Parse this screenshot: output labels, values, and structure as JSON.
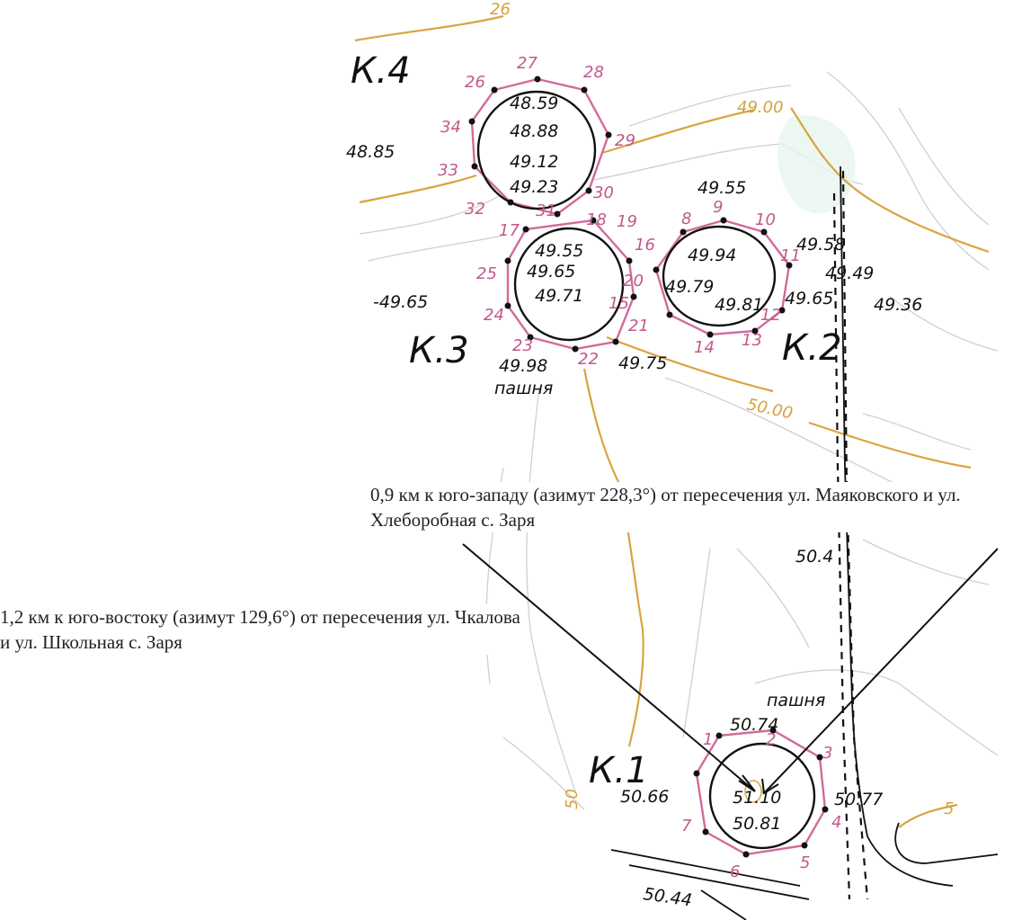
{
  "colors": {
    "contour": "#d9a441",
    "contour_light": "#c8c8c8",
    "boundary": "#d36a9c",
    "ink": "#111111"
  },
  "sites": [
    {
      "name": "К.1",
      "elevations": [
        "51.10",
        "50.81"
      ],
      "vertices": [
        "1",
        "2",
        "3",
        "4",
        "5",
        "6",
        "7"
      ]
    },
    {
      "name": "К.2",
      "elevations": [
        "49.94",
        "49.79",
        "49.81"
      ],
      "vertices": [
        "8",
        "9",
        "10",
        "11",
        "12",
        "13",
        "14",
        "15",
        "16"
      ]
    },
    {
      "name": "К.3",
      "elevations": [
        "49.55",
        "49.65",
        "49.71"
      ],
      "vertices": [
        "17",
        "18",
        "19",
        "20",
        "21",
        "22",
        "23",
        "24",
        "25"
      ]
    },
    {
      "name": "К.4",
      "elevations": [
        "48.59",
        "48.88",
        "49.12",
        "49.23"
      ],
      "vertices": [
        "26",
        "27",
        "28",
        "29",
        "30",
        "31",
        "32",
        "33",
        "34"
      ]
    }
  ],
  "spot_heights": [
    "48.85",
    "49.55",
    "49.58",
    "49.49",
    "49.36",
    "49.65",
    "-49.65",
    "49.98",
    "49.75",
    "50.74",
    "50.66",
    "50.77",
    "50.44",
    "50.4"
  ],
  "contour_labels": [
    "26",
    "49.00",
    "50.00",
    "5",
    "50"
  ],
  "land_use": [
    "пашня",
    "пашня"
  ],
  "notes": [
    "0,9 км к юго-западу (азимут 228,3°) от пересечения ул. Маяковского и ул. Хлеборобная с. Заря",
    "1,2 км к юго-востоку (азимут  129,6°) от пересечения ул. Чкалова и ул. Школьная с. Заря"
  ]
}
